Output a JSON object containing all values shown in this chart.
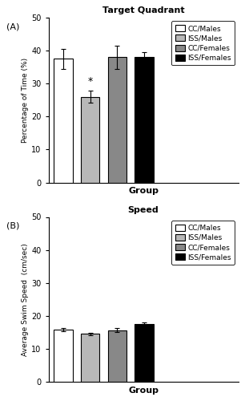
{
  "panel_A": {
    "title": "Target Quadrant",
    "ylabel": "Percentage of Time (%)",
    "xlabel": "Group",
    "label": "(A)",
    "values": [
      37.5,
      26.0,
      38.0,
      38.0
    ],
    "errors": [
      3.0,
      1.8,
      3.5,
      1.5
    ],
    "bar_colors": [
      "white",
      "#b8b8b8",
      "#888888",
      "black"
    ],
    "bar_edgecolors": [
      "black",
      "black",
      "black",
      "black"
    ],
    "ylim": [
      0,
      50
    ],
    "yticks": [
      0,
      10,
      20,
      30,
      40,
      50
    ],
    "asterisk_bar": 1,
    "legend_labels": [
      "CC/Males",
      "ISS/Males",
      "CC/Females",
      "ISS/Females"
    ],
    "legend_colors": [
      "white",
      "#b8b8b8",
      "#888888",
      "black"
    ]
  },
  "panel_B": {
    "title": "Speed",
    "ylabel": "Average Swim Speed  (cm/sec)",
    "xlabel": "Group",
    "label": "(B)",
    "values": [
      15.8,
      14.5,
      15.7,
      17.5
    ],
    "errors": [
      0.4,
      0.3,
      0.5,
      0.6
    ],
    "bar_colors": [
      "white",
      "#b8b8b8",
      "#888888",
      "black"
    ],
    "bar_edgecolors": [
      "black",
      "black",
      "black",
      "black"
    ],
    "ylim": [
      0,
      50
    ],
    "yticks": [
      0,
      10,
      20,
      30,
      40,
      50
    ],
    "legend_labels": [
      "CC/Males",
      "ISS/Males",
      "CC/Females",
      "ISS/Females"
    ],
    "legend_colors": [
      "white",
      "#b8b8b8",
      "#888888",
      "black"
    ]
  },
  "fig_width": 3.06,
  "fig_height": 5.0,
  "dpi": 100
}
